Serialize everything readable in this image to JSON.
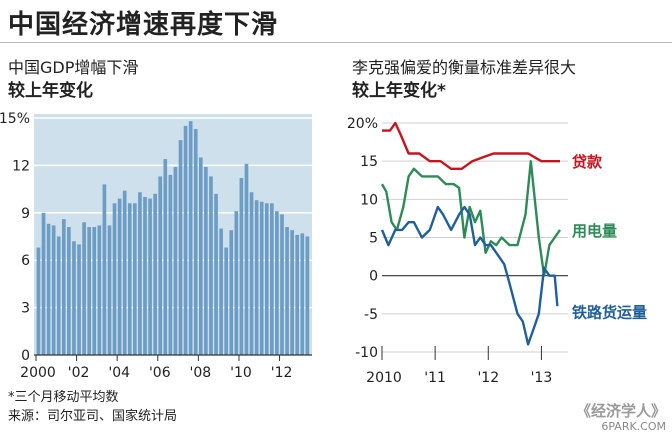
{
  "page": {
    "title": "中国经济增速再度下滑",
    "footnote": "*三个月移动平均数",
    "source": "来源：司尔亚司、国家统计局",
    "watermark": "《经济学人》",
    "watermark_sub": "6PARK.COM"
  },
  "colors": {
    "bar": "#6d9dc5",
    "panel": "#cde0ec",
    "loans": "#c8141e",
    "electricity": "#2e8b57",
    "rail": "#1f5f9b",
    "grid": "#ffffff"
  },
  "chart_data": [
    {
      "type": "bar",
      "title": "中国GDP增幅下滑",
      "subtitle": "较上年变化",
      "ylim": [
        0,
        15
      ],
      "yticks": [
        0,
        3,
        6,
        9,
        12,
        15
      ],
      "ytick_labels": [
        "0",
        "3",
        "6",
        "9",
        "12",
        "15%"
      ],
      "x_start": 2000,
      "periods_per_year": 4,
      "xtick_labels": [
        "2000",
        "'02",
        "'04",
        "'06",
        "'08",
        "'10",
        "'12"
      ],
      "values": [
        6.8,
        9.0,
        8.3,
        8.2,
        7.5,
        8.6,
        8.1,
        7.2,
        7.0,
        8.4,
        8.1,
        8.1,
        8.2,
        10.8,
        8.2,
        9.6,
        9.9,
        10.4,
        9.6,
        9.6,
        10.3,
        10.0,
        9.9,
        10.2,
        11.3,
        12.4,
        11.4,
        11.9,
        13.6,
        14.5,
        14.8,
        14.3,
        12.5,
        11.9,
        11.3,
        10.2,
        8.0,
        6.8,
        7.9,
        9.1,
        11.2,
        12.1,
        10.3,
        9.8,
        9.7,
        9.6,
        9.6,
        9.1,
        8.9,
        8.1,
        7.9,
        7.6,
        7.7,
        7.5
      ],
      "series_name": "GDP"
    },
    {
      "type": "line",
      "title": "李克强偏爱的衡量标准差异很大",
      "subtitle": "较上年变化*",
      "ylim": [
        -10,
        20
      ],
      "yticks": [
        -10,
        -5,
        0,
        5,
        10,
        15,
        20
      ],
      "ytick_labels": [
        "-10",
        "-5",
        "0",
        "5",
        "10",
        "15",
        "20%"
      ],
      "x_start": 2010,
      "x_end": 2013.5,
      "xtick_labels": [
        "2010",
        "'11",
        "'12",
        "'13"
      ],
      "series": [
        {
          "name": "贷款",
          "color_key": "loans",
          "x": [
            2010.0,
            2010.15,
            2010.25,
            2010.35,
            2010.5,
            2010.7,
            2010.9,
            2011.1,
            2011.3,
            2011.5,
            2011.7,
            2011.9,
            2012.1,
            2012.3,
            2012.5,
            2012.75,
            2013.0,
            2013.2,
            2013.35
          ],
          "values": [
            19,
            19,
            20,
            18.5,
            16,
            16,
            15,
            15,
            14,
            14,
            15,
            15.5,
            16,
            16,
            16,
            16,
            15,
            15,
            15
          ]
        },
        {
          "name": "用电量",
          "color_key": "electricity",
          "x": [
            2010.0,
            2010.08,
            2010.18,
            2010.28,
            2010.4,
            2010.5,
            2010.6,
            2010.75,
            2010.9,
            2011.05,
            2011.2,
            2011.35,
            2011.45,
            2011.55,
            2011.65,
            2011.75,
            2011.85,
            2011.95,
            2012.05,
            2012.15,
            2012.25,
            2012.4,
            2012.55,
            2012.7,
            2012.8,
            2012.95,
            2013.05,
            2013.15,
            2013.25,
            2013.35
          ],
          "values": [
            12,
            11,
            7,
            6,
            9,
            13,
            14,
            13,
            13,
            13,
            12,
            12,
            11.5,
            5,
            9,
            7,
            8.5,
            3,
            4.5,
            4,
            5,
            4,
            4,
            8,
            15,
            5,
            0,
            4,
            5,
            6
          ]
        },
        {
          "name": "铁路货运量",
          "color_key": "rail",
          "x": [
            2010.0,
            2010.12,
            2010.25,
            2010.38,
            2010.5,
            2010.6,
            2010.75,
            2010.9,
            2011.05,
            2011.15,
            2011.3,
            2011.45,
            2011.55,
            2011.65,
            2011.75,
            2011.85,
            2011.95,
            2012.05,
            2012.15,
            2012.3,
            2012.4,
            2012.55,
            2012.65,
            2012.75,
            2012.85,
            2012.95,
            2013.05,
            2013.15,
            2013.25,
            2013.3
          ],
          "values": [
            6,
            4,
            6,
            6,
            7,
            7,
            5,
            6,
            9,
            8,
            6,
            8,
            9,
            8,
            4,
            5,
            4,
            4,
            3,
            1.5,
            -1,
            -5,
            -6,
            -9,
            -7,
            -5,
            1,
            0,
            0,
            -4
          ]
        }
      ],
      "labels": [
        "贷款",
        "用电量",
        "铁路货运量"
      ]
    }
  ]
}
